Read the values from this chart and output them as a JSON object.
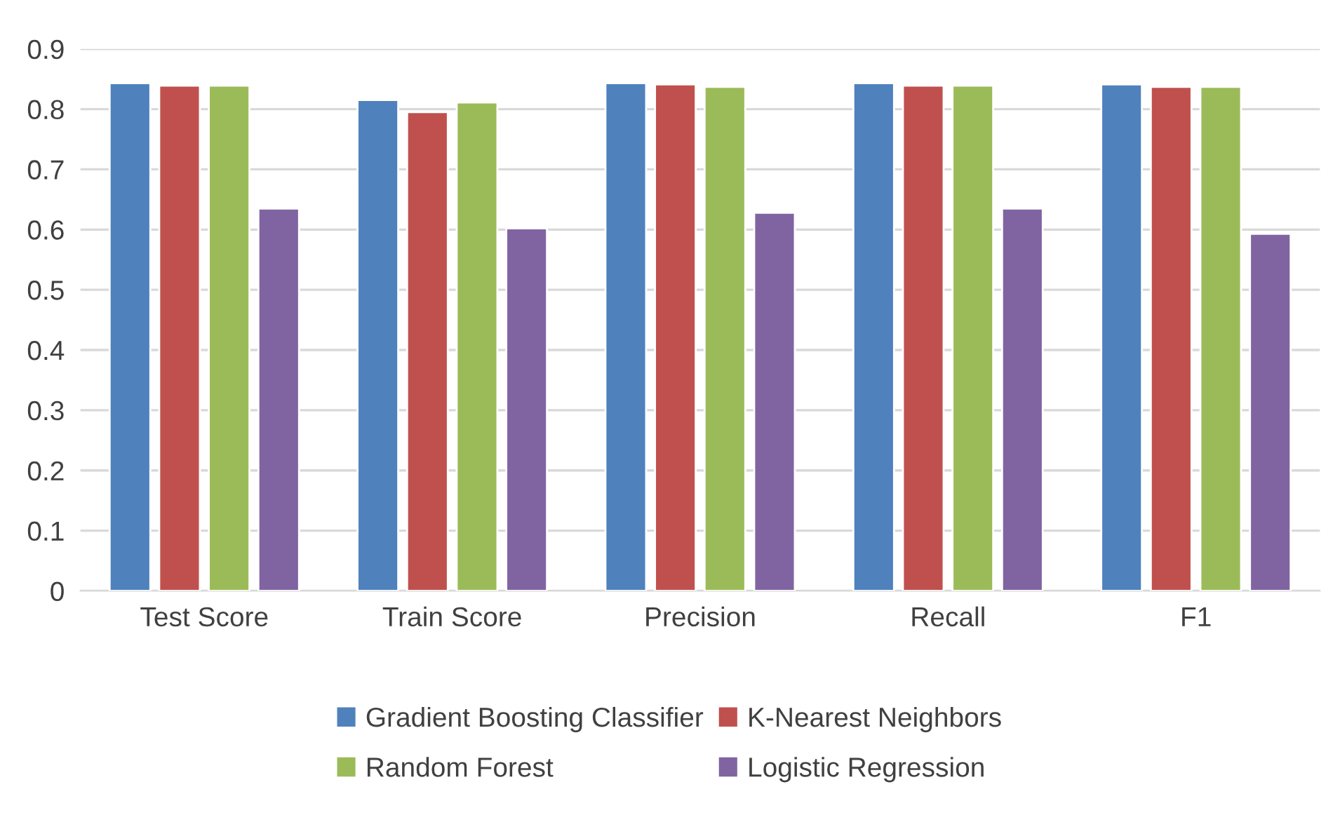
{
  "chart_data": {
    "type": "bar",
    "categories": [
      "Test Score",
      "Train Score",
      "Precision",
      "Recall",
      "F1"
    ],
    "series": [
      {
        "name": "Gradient Boosting Classifier",
        "color": "#4f81bd",
        "values": [
          0.843,
          0.815,
          0.843,
          0.843,
          0.841
        ]
      },
      {
        "name": "K-Nearest Neighbors",
        "color": "#c0504d",
        "values": [
          0.839,
          0.795,
          0.841,
          0.839,
          0.837
        ]
      },
      {
        "name": "Random Forest",
        "color": "#9bbb59",
        "values": [
          0.839,
          0.811,
          0.837,
          0.839,
          0.837
        ]
      },
      {
        "name": "Logistic Regression",
        "color": "#8064a2",
        "values": [
          0.635,
          0.602,
          0.628,
          0.635,
          0.593
        ]
      }
    ],
    "ylim": [
      0,
      0.9
    ],
    "yticks": [
      {
        "value": 0,
        "label": "0"
      },
      0.1,
      0.2,
      0.3,
      0.4,
      0.5,
      0.6,
      0.7,
      0.8,
      0.9
    ],
    "grid": "y",
    "legend": "bottom"
  }
}
